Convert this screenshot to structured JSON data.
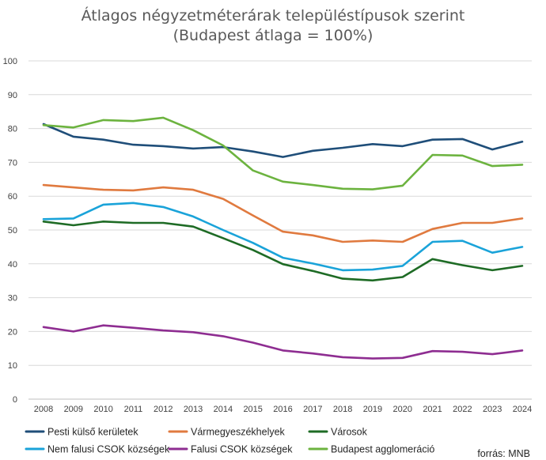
{
  "chart_data": {
    "type": "line",
    "title": "Átlagos négyzetméterárak településtípusok szerint",
    "subtitle": "(Budapest átlaga = 100%)",
    "xlabel": "",
    "ylabel": "",
    "ylim": [
      0,
      100
    ],
    "y_ticks": [
      "0",
      "10",
      "20",
      "30",
      "40",
      "50",
      "60",
      "70",
      "80",
      "90",
      "100"
    ],
    "x": [
      "2008",
      "2009",
      "2010",
      "2011",
      "2012",
      "2013",
      "2014",
      "2015",
      "2016",
      "2017",
      "2018",
      "2019",
      "2020",
      "2021",
      "2022",
      "2023",
      "2024"
    ],
    "grid": true,
    "legend_position": "bottom",
    "source": "forrás: MNB",
    "series": [
      {
        "name": "Pesti külső kerületek",
        "color": "#1f4e79",
        "values": [
          81.3,
          77.6,
          76.7,
          75.2,
          74.8,
          74.1,
          74.5,
          73.2,
          71.6,
          73.4,
          74.3,
          75.4,
          74.8,
          76.7,
          76.9,
          73.8,
          76.1
        ]
      },
      {
        "name": "Vármegyeszékhelyek",
        "color": "#e07a3f",
        "values": [
          63.3,
          62.6,
          61.9,
          61.7,
          62.6,
          61.9,
          59.2,
          54.3,
          49.5,
          48.4,
          46.5,
          46.9,
          46.5,
          50.3,
          52.1,
          52.1,
          53.4
        ]
      },
      {
        "name": "Városok",
        "color": "#1e6b25",
        "values": [
          52.5,
          51.4,
          52.5,
          52.1,
          52.1,
          51.0,
          47.6,
          44.1,
          39.9,
          37.9,
          35.6,
          35.1,
          36.1,
          41.4,
          39.6,
          38.1,
          39.4
        ]
      },
      {
        "name": "Nem falusi CSOK községek",
        "color": "#1aa3d9",
        "values": [
          53.2,
          53.4,
          57.5,
          58.0,
          56.8,
          54.0,
          50.0,
          46.2,
          41.8,
          40.1,
          38.1,
          38.3,
          39.4,
          46.5,
          46.8,
          43.3,
          45.0
        ]
      },
      {
        "name": "Falusi CSOK községek",
        "color": "#8e2d91",
        "values": [
          21.3,
          20.0,
          21.8,
          21.1,
          20.3,
          19.8,
          18.6,
          16.7,
          14.4,
          13.5,
          12.4,
          12.0,
          12.2,
          14.2,
          14.0,
          13.3,
          14.4
        ]
      },
      {
        "name": "Budapest agglomeráció",
        "color": "#6cb33f",
        "values": [
          81.0,
          80.3,
          82.5,
          82.2,
          83.2,
          79.5,
          75.0,
          67.6,
          64.3,
          63.3,
          62.2,
          62.0,
          63.1,
          72.2,
          72.0,
          68.9,
          69.3
        ]
      }
    ]
  }
}
